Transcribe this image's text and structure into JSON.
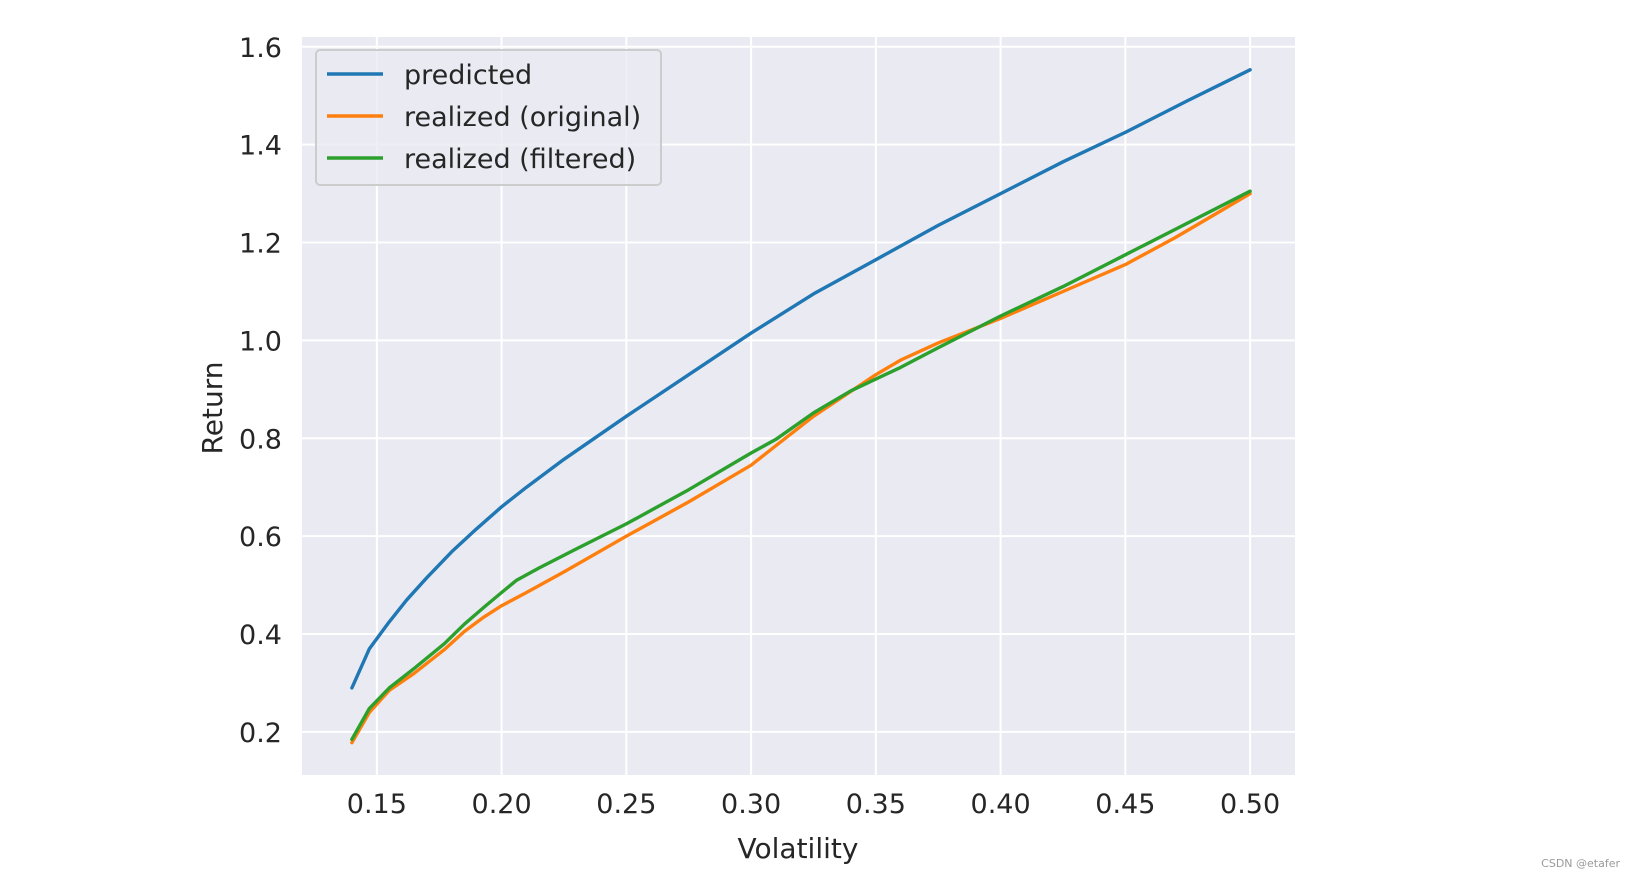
{
  "chart_data": {
    "type": "line",
    "xlabel": "Volatility",
    "ylabel": "Return",
    "xlim": [
      0.12,
      0.518
    ],
    "ylim": [
      0.112,
      1.62
    ],
    "xticks": [
      "0.15",
      "0.20",
      "0.25",
      "0.30",
      "0.35",
      "0.40",
      "0.45",
      "0.50"
    ],
    "yticks": [
      "0.2",
      "0.4",
      "0.6",
      "0.8",
      "1.0",
      "1.2",
      "1.4",
      "1.6"
    ],
    "grid": true,
    "legend_position": "upper-left",
    "series": [
      {
        "name": "predicted",
        "color": "#1f77b4",
        "x": [
          0.14,
          0.147,
          0.155,
          0.162,
          0.17,
          0.18,
          0.19,
          0.2,
          0.21,
          0.225,
          0.25,
          0.275,
          0.3,
          0.325,
          0.35,
          0.375,
          0.4,
          0.425,
          0.45,
          0.475,
          0.5
        ],
        "y": [
          0.29,
          0.37,
          0.425,
          0.47,
          0.515,
          0.568,
          0.615,
          0.66,
          0.7,
          0.757,
          0.845,
          0.93,
          1.015,
          1.095,
          1.165,
          1.235,
          1.3,
          1.365,
          1.425,
          1.49,
          1.553
        ]
      },
      {
        "name": "realized (original)",
        "color": "#ff7f0e",
        "x": [
          0.14,
          0.147,
          0.155,
          0.165,
          0.177,
          0.185,
          0.193,
          0.2,
          0.21,
          0.225,
          0.25,
          0.275,
          0.3,
          0.31,
          0.325,
          0.35,
          0.36,
          0.375,
          0.4,
          0.425,
          0.45,
          0.47,
          0.48,
          0.5
        ],
        "y": [
          0.178,
          0.24,
          0.285,
          0.32,
          0.368,
          0.405,
          0.435,
          0.458,
          0.485,
          0.527,
          0.6,
          0.67,
          0.745,
          0.785,
          0.845,
          0.93,
          0.96,
          0.995,
          1.045,
          1.1,
          1.155,
          1.21,
          1.24,
          1.3
        ]
      },
      {
        "name": "realized (filtered)",
        "color": "#2ca02c",
        "x": [
          0.14,
          0.147,
          0.155,
          0.165,
          0.177,
          0.185,
          0.193,
          0.2,
          0.206,
          0.215,
          0.23,
          0.25,
          0.275,
          0.3,
          0.31,
          0.325,
          0.34,
          0.36,
          0.375,
          0.4,
          0.425,
          0.45,
          0.475,
          0.5
        ],
        "y": [
          0.185,
          0.248,
          0.29,
          0.33,
          0.38,
          0.42,
          0.455,
          0.485,
          0.51,
          0.535,
          0.574,
          0.625,
          0.695,
          0.77,
          0.798,
          0.852,
          0.897,
          0.945,
          0.985,
          1.05,
          1.11,
          1.175,
          1.24,
          1.305
        ]
      }
    ]
  },
  "watermark": "CSDN @etafer"
}
